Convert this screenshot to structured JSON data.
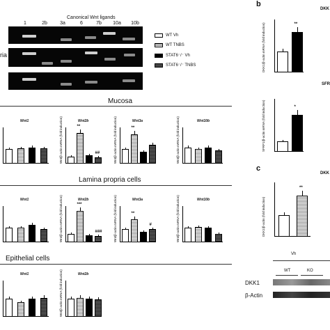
{
  "gel": {
    "title": "Canonical Wnt ligands",
    "lanes": [
      "1",
      "2b",
      "3a",
      "6",
      "7b",
      "10a",
      "10b"
    ],
    "left_fragment": "ria"
  },
  "legend": [
    {
      "label": "WT Vh",
      "style": "wt-vh"
    },
    {
      "label": "WT TNBS",
      "style": "wt-tnbs"
    },
    {
      "label": "STAT6⁻/⁻ Vh",
      "style": "ko-vh"
    },
    {
      "label": "STAT6⁻/⁻ TNBS",
      "style": "ko-tnbs"
    }
  ],
  "sections": {
    "mucosa": "Mucosa",
    "lamina": "Lamina propria cells",
    "epithelial": "Epithelial cells"
  },
  "panel_b": {
    "letter": "b",
    "top_title": "DKK",
    "sfrp_title": "SFR",
    "dkk_ylabel": "DKK1/β-actin mRNA (fold induction)",
    "sfrp_ylabel": "SFRP1/β-actin mRNA (fold induction)"
  },
  "panel_c": {
    "letter": "c",
    "title": "DKK",
    "ylabel": "DKK1/β-actin (fold induction)",
    "vh": "Vh",
    "wt": "WT",
    "ko": "KO",
    "dkk1": "DKK1",
    "bactin": "β-Actin"
  },
  "bar_ylabel": "Wnt/β-actin mRNA (fold induction)",
  "chart_data": [
    {
      "type": "bar",
      "title": "Wnt1",
      "series": [
        {
          "values": [
            1.0,
            1.05,
            1.1,
            1.05
          ]
        }
      ]
    },
    {
      "type": "bar",
      "title": "Wnt2b",
      "series": [
        {
          "values": [
            0.5,
            2.1,
            0.6,
            0.45
          ]
        }
      ],
      "stars": [
        "",
        "**",
        "",
        "##"
      ]
    },
    {
      "type": "bar",
      "title": "Wnt3a",
      "series": [
        {
          "values": [
            1.0,
            2.0,
            0.8,
            1.3
          ]
        }
      ],
      "stars": [
        "",
        "**",
        "",
        ""
      ]
    },
    {
      "type": "bar",
      "title": "Wnt10b",
      "series": [
        {
          "values": [
            1.1,
            1.0,
            1.1,
            0.9
          ]
        }
      ]
    },
    {
      "type": "bar",
      "title": "Wnt1",
      "series": [
        {
          "values": [
            1.0,
            1.0,
            1.2,
            0.9
          ]
        }
      ]
    },
    {
      "type": "bar",
      "title": "Wnt2b",
      "series": [
        {
          "values": [
            0.7,
            2.6,
            0.6,
            0.5
          ]
        }
      ],
      "stars": [
        "",
        "***",
        "",
        "###"
      ]
    },
    {
      "type": "bar",
      "title": "Wnt3a",
      "series": [
        {
          "values": [
            0.9,
            1.6,
            0.7,
            0.9
          ]
        }
      ],
      "stars": [
        "",
        "**",
        "",
        "#"
      ]
    },
    {
      "type": "bar",
      "title": "Wnt10b",
      "series": [
        {
          "values": [
            1.0,
            1.05,
            1.0,
            0.6
          ]
        }
      ]
    },
    {
      "type": "bar",
      "title": "Wnt1",
      "series": [
        {
          "values": [
            1.0,
            0.8,
            1.0,
            1.05
          ]
        }
      ]
    },
    {
      "type": "bar",
      "title": "Wnt2b",
      "series": [
        {
          "values": [
            1.0,
            1.05,
            1.0,
            0.95
          ]
        }
      ]
    },
    {
      "type": "bar",
      "title": "",
      "series": [
        {
          "values": [
            1.0,
            1.9
          ]
        }
      ],
      "stars": [
        "",
        "**"
      ]
    },
    {
      "type": "bar",
      "title": "",
      "series": [
        {
          "values": [
            1.0,
            3.5
          ]
        }
      ],
      "stars": [
        "",
        "*"
      ]
    },
    {
      "type": "bar",
      "title": "",
      "series": [
        {
          "values": [
            1.0,
            1.9
          ]
        }
      ],
      "stars": [
        "",
        "**"
      ]
    }
  ]
}
